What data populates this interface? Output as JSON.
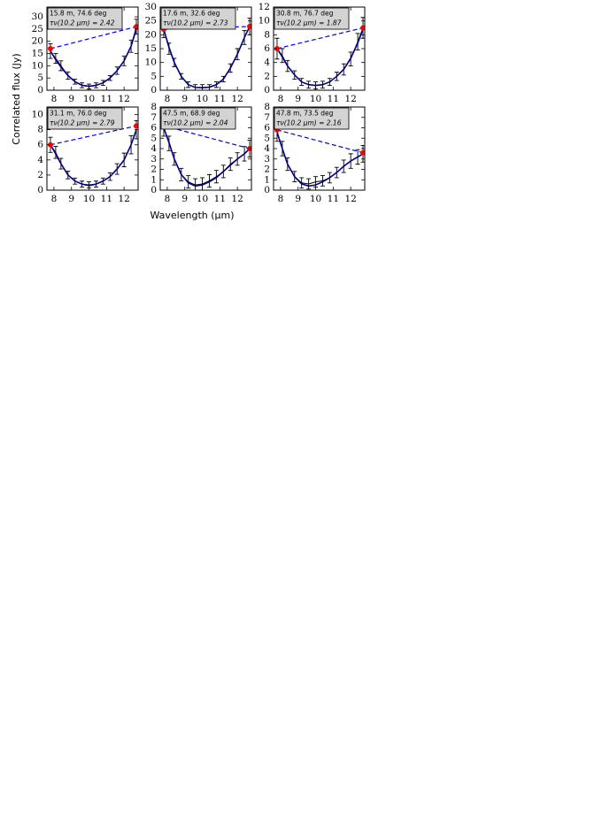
{
  "xlabel": "Wavelength (μm)",
  "ylabel": "Correlated flux (Jy)",
  "chart_data": [
    {
      "type": "line",
      "label": "15.8 m, 74.6 deg",
      "tau_label": "τν(10.2 μm) = 2.42",
      "xlim": [
        7.6,
        12.8
      ],
      "ylim": [
        0,
        34
      ],
      "xticks": [
        8,
        9,
        10,
        11,
        12
      ],
      "yticks": [
        0,
        5,
        10,
        15,
        20,
        25,
        30
      ],
      "x": [
        7.8,
        8.1,
        8.4,
        8.8,
        9.2,
        9.6,
        10.0,
        10.4,
        10.8,
        11.2,
        11.6,
        12.0,
        12.4,
        12.7
      ],
      "values": [
        16,
        13,
        10,
        6,
        3.5,
        2,
        1.5,
        2,
        3,
        5,
        8,
        12,
        18,
        26
      ],
      "errors": [
        3,
        2,
        2,
        1.5,
        1,
        1,
        1,
        1,
        1,
        1,
        1.5,
        2,
        2.5,
        3
      ],
      "model": [
        16,
        12.5,
        9.5,
        6,
        3.5,
        2,
        1.6,
        2,
        3,
        5,
        8,
        12,
        18,
        25
      ],
      "continuum_x": [
        7.8,
        12.7
      ],
      "continuum": [
        17,
        26
      ],
      "color": "#000000",
      "model_color": "#00008b",
      "continuum_color": "#0000ff",
      "endpoint_color": "#ff0000"
    },
    {
      "type": "line",
      "label": "17.6 m, 32.6 deg",
      "tau_label": "τν(10.2 μm) = 2.73",
      "xlim": [
        7.6,
        12.8
      ],
      "ylim": [
        0,
        30
      ],
      "xticks": [
        8,
        9,
        10,
        11,
        12
      ],
      "yticks": [
        0,
        5,
        10,
        15,
        20,
        25,
        30
      ],
      "x": [
        7.8,
        8.1,
        8.4,
        8.8,
        9.2,
        9.6,
        10.0,
        10.4,
        10.8,
        11.2,
        11.6,
        12.0,
        12.4,
        12.7
      ],
      "values": [
        22,
        15,
        10,
        5,
        2,
        1,
        1,
        1,
        2,
        4,
        8,
        13,
        19,
        23
      ],
      "errors": [
        3,
        2,
        1.5,
        1,
        1,
        1,
        1,
        1,
        1,
        1,
        1.5,
        2,
        2.5,
        3
      ],
      "model": [
        22,
        15.5,
        10,
        5,
        2,
        1,
        0.9,
        1.1,
        2,
        4,
        8,
        13,
        19,
        23
      ],
      "continuum_x": [
        7.8,
        12.7
      ],
      "continuum": [
        22,
        23
      ],
      "color": "#000000",
      "model_color": "#00008b",
      "continuum_color": "#0000ff",
      "endpoint_color": "#ff0000"
    },
    {
      "type": "line",
      "label": "30.8 m, 76.7 deg",
      "tau_label": "τν(10.2 μm) = 1.87",
      "xlim": [
        7.6,
        12.8
      ],
      "ylim": [
        0,
        12
      ],
      "xticks": [
        8,
        9,
        10,
        11,
        12
      ],
      "yticks": [
        0,
        2,
        4,
        6,
        8,
        10,
        12
      ],
      "x": [
        7.8,
        8.1,
        8.4,
        8.8,
        9.2,
        9.6,
        10.0,
        10.4,
        10.8,
        11.2,
        11.6,
        12.0,
        12.4,
        12.7
      ],
      "values": [
        6,
        5,
        3.5,
        2.2,
        1.2,
        0.8,
        0.7,
        0.8,
        1.2,
        2,
        3,
        4.5,
        7,
        9
      ],
      "errors": [
        1.5,
        1,
        0.8,
        0.6,
        0.5,
        0.5,
        0.5,
        0.5,
        0.5,
        0.6,
        0.8,
        1,
        1.2,
        1.5
      ],
      "model": [
        6,
        4.8,
        3.5,
        2.2,
        1.2,
        0.8,
        0.7,
        0.8,
        1.2,
        2,
        3,
        4.6,
        6.8,
        8.8
      ],
      "continuum_x": [
        7.8,
        12.7
      ],
      "continuum": [
        6,
        9
      ],
      "color": "#000000",
      "model_color": "#00008b",
      "continuum_color": "#0000ff",
      "endpoint_color": "#ff0000"
    },
    {
      "type": "line",
      "label": "31.1 m, 76.0 deg",
      "tau_label": "τν(10.2 μm) = 2.79",
      "xlim": [
        7.6,
        12.8
      ],
      "ylim": [
        0,
        11
      ],
      "xticks": [
        8,
        9,
        10,
        11,
        12
      ],
      "yticks": [
        0,
        2,
        4,
        6,
        8,
        10
      ],
      "x": [
        7.8,
        8.1,
        8.4,
        8.8,
        9.2,
        9.6,
        10.0,
        10.4,
        10.8,
        11.2,
        11.6,
        12.0,
        12.4,
        12.7
      ],
      "values": [
        6,
        5,
        3.5,
        2,
        1.2,
        0.8,
        0.7,
        0.8,
        1.2,
        1.8,
        2.8,
        4,
        6,
        8
      ],
      "errors": [
        1,
        0.8,
        0.7,
        0.5,
        0.4,
        0.4,
        0.4,
        0.4,
        0.4,
        0.5,
        0.7,
        0.9,
        1.2,
        1.2
      ],
      "model": [
        6,
        4.8,
        3.5,
        2,
        1.2,
        0.8,
        0.6,
        0.8,
        1.2,
        1.8,
        2.8,
        4,
        6,
        8
      ],
      "continuum_x": [
        7.8,
        12.7
      ],
      "continuum": [
        6,
        8.5
      ],
      "color": "#000000",
      "model_color": "#00008b",
      "continuum_color": "#0000ff",
      "endpoint_color": "#ff0000"
    },
    {
      "type": "line",
      "label": "47.5 m, 68.9 deg",
      "tau_label": "τν(10.2 μm) = 2.04",
      "xlim": [
        7.6,
        12.8
      ],
      "ylim": [
        0,
        8
      ],
      "xticks": [
        8,
        9,
        10,
        11,
        12
      ],
      "yticks": [
        0,
        1,
        2,
        3,
        4,
        5,
        6,
        7,
        8
      ],
      "x": [
        7.8,
        8.1,
        8.4,
        8.8,
        9.2,
        9.6,
        10.0,
        10.4,
        10.8,
        11.2,
        11.6,
        12.0,
        12.4,
        12.7
      ],
      "values": [
        6,
        4.5,
        3,
        1.5,
        0.8,
        0.5,
        0.6,
        0.9,
        1.3,
        1.8,
        2.5,
        3,
        3.5,
        4
      ],
      "errors": [
        0.8,
        0.7,
        0.6,
        0.6,
        0.6,
        0.6,
        0.6,
        0.6,
        0.6,
        0.6,
        0.6,
        0.6,
        0.7,
        0.8
      ],
      "model": [
        6,
        4.6,
        3,
        1.5,
        0.7,
        0.4,
        0.5,
        0.8,
        1.2,
        1.8,
        2.4,
        3,
        3.5,
        4
      ],
      "continuum_x": [
        7.8,
        12.7
      ],
      "continuum": [
        6.2,
        4
      ],
      "color": "#000000",
      "model_color": "#00008b",
      "continuum_color": "#0000ff",
      "endpoint_color": "#ff0000"
    },
    {
      "type": "line",
      "label": "47.8 m, 73.5 deg",
      "tau_label": "τν(10.2 μm) = 2.16",
      "xlim": [
        7.6,
        12.8
      ],
      "ylim": [
        0,
        8
      ],
      "xticks": [
        8,
        9,
        10,
        11,
        12
      ],
      "yticks": [
        0,
        1,
        2,
        3,
        4,
        5,
        6,
        7,
        8
      ],
      "x": [
        7.8,
        8.1,
        8.4,
        8.8,
        9.2,
        9.6,
        10.0,
        10.4,
        10.8,
        11.2,
        11.6,
        12.0,
        12.4,
        12.7
      ],
      "values": [
        5.5,
        4,
        2.5,
        1.3,
        0.7,
        0.6,
        0.8,
        0.9,
        1.2,
        1.7,
        2.3,
        2.8,
        3.2,
        3.5
      ],
      "errors": [
        0.8,
        0.7,
        0.6,
        0.5,
        0.5,
        0.5,
        0.5,
        0.5,
        0.5,
        0.5,
        0.6,
        0.7,
        0.7,
        0.8
      ],
      "model": [
        5.6,
        4,
        2.5,
        1.3,
        0.6,
        0.4,
        0.5,
        0.8,
        1.2,
        1.7,
        2.3,
        2.8,
        3.2,
        3.5
      ],
      "continuum_x": [
        7.8,
        12.7
      ],
      "continuum": [
        5.8,
        3.6
      ],
      "color": "#000000",
      "model_color": "#00008b",
      "continuum_color": "#0000ff",
      "endpoint_color": "#ff0000"
    }
  ]
}
